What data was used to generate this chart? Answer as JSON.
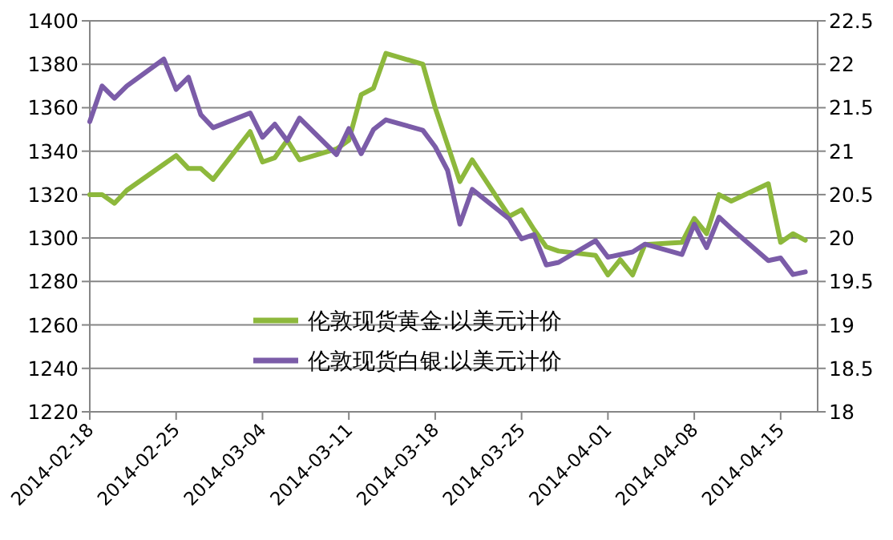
{
  "chart_data": {
    "type": "line",
    "x": [
      "2014-02-18",
      "2014-02-19",
      "2014-02-20",
      "2014-02-21",
      "2014-02-24",
      "2014-02-25",
      "2014-02-26",
      "2014-02-27",
      "2014-02-28",
      "2014-03-03",
      "2014-03-04",
      "2014-03-05",
      "2014-03-06",
      "2014-03-07",
      "2014-03-10",
      "2014-03-11",
      "2014-03-12",
      "2014-03-13",
      "2014-03-14",
      "2014-03-17",
      "2014-03-18",
      "2014-03-19",
      "2014-03-20",
      "2014-03-21",
      "2014-03-24",
      "2014-03-25",
      "2014-03-26",
      "2014-03-27",
      "2014-03-28",
      "2014-03-31",
      "2014-04-01",
      "2014-04-02",
      "2014-04-03",
      "2014-04-04",
      "2014-04-07",
      "2014-04-08",
      "2014-04-09",
      "2014-04-10",
      "2014-04-11",
      "2014-04-14",
      "2014-04-15",
      "2014-04-16",
      "2014-04-17"
    ],
    "series": [
      {
        "name": "伦敦现货黄金:以美元计价",
        "color": "#8db83c",
        "values": [
          1320,
          1320,
          1316,
          1322,
          1334,
          1338,
          1332,
          1332,
          1327,
          1349,
          1335,
          1337,
          1345,
          1336,
          1341,
          1345,
          1366,
          1369,
          1385,
          1380,
          1360,
          1343,
          1326,
          1336,
          1310,
          1313,
          1304,
          1296,
          1294,
          1292,
          1283,
          1290,
          1283,
          1297,
          1298,
          1309,
          1302,
          1320,
          1317,
          1325,
          1298,
          1302,
          1299
        ]
      },
      {
        "name": "伦敦现货白银:以美元计价",
        "color": "#7b5ca8",
        "axis": "y2",
        "values": [
          21.34,
          21.75,
          21.61,
          21.75,
          22.06,
          21.71,
          21.85,
          21.42,
          21.27,
          21.44,
          21.16,
          21.31,
          21.12,
          21.38,
          20.96,
          21.26,
          20.97,
          21.25,
          21.36,
          21.24,
          21.05,
          20.78,
          20.16,
          20.56,
          20.22,
          19.99,
          20.04,
          19.69,
          19.72,
          19.97,
          19.78,
          19.81,
          19.84,
          19.93,
          19.81,
          20.16,
          19.89,
          20.24,
          20.11,
          19.74,
          19.77,
          19.58,
          19.61
        ]
      }
    ],
    "xlim": [
      "2014-02-18",
      "2014-04-18"
    ],
    "xticks": [
      "2014-02-18",
      "2014-02-25",
      "2014-03-04",
      "2014-03-11",
      "2014-03-18",
      "2014-03-25",
      "2014-04-01",
      "2014-04-08",
      "2014-04-15"
    ],
    "ylim": [
      1220,
      1400
    ],
    "yticks": [
      1220,
      1240,
      1260,
      1280,
      1300,
      1320,
      1340,
      1360,
      1380,
      1400
    ],
    "y2lim": [
      18,
      22.5
    ],
    "y2ticks": [
      18,
      18.5,
      19,
      19.5,
      20,
      20.5,
      21,
      21.5,
      22,
      22.5
    ],
    "grid": "y",
    "legend": "bottom"
  }
}
